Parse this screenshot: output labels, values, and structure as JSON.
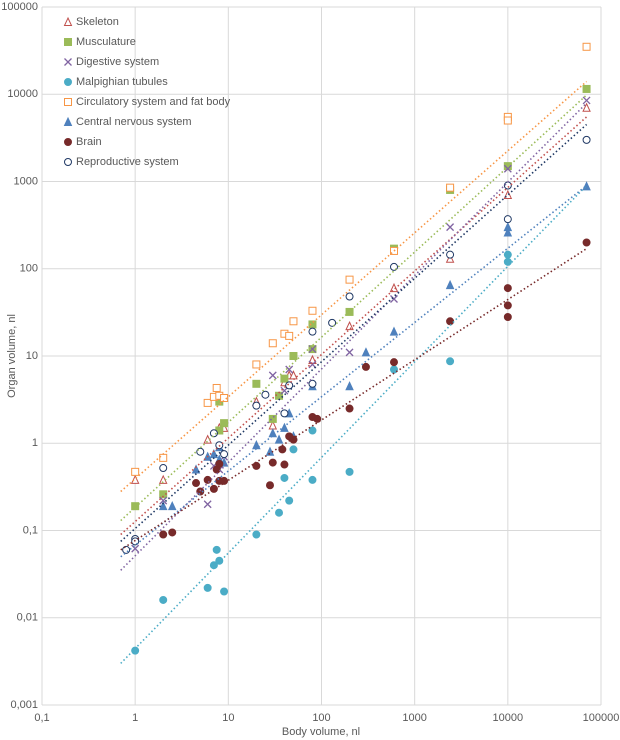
{
  "chart_data": {
    "type": "scatter",
    "log_x": true,
    "log_y": true,
    "grid": true,
    "legend": "upper left",
    "xlabel": "Body volume, nl",
    "ylabel": "Organ volume, nl",
    "xlim": [
      0.1,
      100000
    ],
    "ylim": [
      0.001,
      100000
    ],
    "xticks": [
      {
        "value": 0.1,
        "label": "0,1"
      },
      1,
      10,
      100,
      1000,
      10000,
      100000
    ],
    "yticks": [
      {
        "value": 0.001,
        "label": "0,001"
      },
      {
        "value": 0.01,
        "label": "0,01"
      },
      {
        "value": 0.1,
        "label": "0,1"
      },
      1,
      10,
      100,
      1000,
      10000,
      100000
    ],
    "series": [
      {
        "name": "Skeleton",
        "color": "#c0504d",
        "marker": "triangle-open",
        "x": [
          1,
          2,
          6,
          8,
          9,
          20,
          30,
          40,
          45,
          50,
          80,
          200,
          600,
          2400,
          10000,
          70000
        ],
        "values": [
          0.38,
          0.38,
          1.1,
          1.5,
          1.5,
          3,
          1.6,
          5,
          6,
          6,
          9,
          22,
          60,
          130,
          700,
          7000
        ],
        "trend": {
          "x": [
            0.7,
            70000
          ],
          "values": [
            0.09,
            5500
          ]
        }
      },
      {
        "name": "Musculature",
        "color": "#9bbb59",
        "marker": "square",
        "x": [
          1,
          2,
          8,
          8,
          9,
          20,
          30,
          35,
          40,
          50,
          80,
          80,
          200,
          600,
          2400,
          10000,
          70000
        ],
        "values": [
          0.19,
          0.26,
          1.4,
          3,
          1.7,
          4.8,
          1.9,
          3.5,
          5.5,
          10,
          23,
          12,
          32,
          170,
          800,
          1500,
          11500
        ],
        "trend": {
          "x": [
            0.7,
            70000
          ],
          "values": [
            0.13,
            9800
          ]
        }
      },
      {
        "name": "Digestive system",
        "color": "#8064a2",
        "marker": "cross",
        "x": [
          1,
          2,
          6,
          7,
          8,
          9,
          30,
          40,
          45,
          80,
          80,
          200,
          600,
          2400,
          10000,
          70000
        ],
        "values": [
          0.062,
          0.22,
          0.2,
          0.55,
          0.5,
          0.7,
          6,
          4,
          7,
          12,
          8,
          11,
          45,
          300,
          1400,
          8500
        ],
        "trend": {
          "x": [
            0.7,
            70000
          ],
          "values": [
            0.035,
            7900
          ]
        }
      },
      {
        "name": "Malpighian tubules",
        "color": "#4bacc6",
        "marker": "circle",
        "x": [
          1,
          2,
          6,
          7,
          7.5,
          8,
          9,
          20,
          35,
          40,
          45,
          50,
          80,
          80,
          200,
          600,
          2400,
          10000,
          10000
        ],
        "values": [
          0.0042,
          0.016,
          0.022,
          0.04,
          0.06,
          0.045,
          0.02,
          0.09,
          0.16,
          0.4,
          0.22,
          0.85,
          0.38,
          1.4,
          0.47,
          7,
          8.7,
          120,
          145
        ],
        "trend": {
          "x": [
            0.7,
            70000
          ],
          "values": [
            0.003,
            900
          ]
        }
      },
      {
        "name": "Circulatory system and fat body",
        "color": "#f79646",
        "marker": "square-open",
        "x": [
          1,
          2,
          6,
          7,
          7.5,
          8,
          9,
          20,
          30,
          40,
          45,
          50,
          80,
          200,
          600,
          2400,
          10000,
          10000,
          70000
        ],
        "values": [
          0.47,
          0.68,
          2.9,
          3.4,
          4.3,
          3.5,
          3.3,
          8,
          14,
          18,
          17,
          25,
          33,
          75,
          160,
          850,
          5500,
          5000,
          35000
        ],
        "trend": {
          "x": [
            0.7,
            70000
          ],
          "values": [
            0.28,
            14000
          ]
        }
      },
      {
        "name": "Central nervous system",
        "color": "#4f81bd",
        "marker": "triangle",
        "x": [
          2,
          2.5,
          4.5,
          6,
          7,
          8,
          8,
          9,
          20,
          28,
          30,
          35,
          40,
          45,
          50,
          80,
          200,
          300,
          600,
          2400,
          10000,
          10000,
          70000
        ],
        "values": [
          0.19,
          0.19,
          0.5,
          0.7,
          0.75,
          0.9,
          0.65,
          0.6,
          0.95,
          0.8,
          1.3,
          1.1,
          1.5,
          2.2,
          1.2,
          4.5,
          4.5,
          11,
          19,
          65,
          260,
          300,
          880
        ],
        "trend": {
          "x": [
            0.7,
            70000
          ],
          "values": [
            0.05,
            900
          ]
        }
      },
      {
        "name": "Brain",
        "color": "#772a2a",
        "marker": "circle",
        "x": [
          2,
          2.5,
          4.5,
          5,
          6,
          7,
          7.5,
          8,
          8,
          9,
          20,
          28,
          30,
          38,
          40,
          45,
          50,
          80,
          90,
          200,
          300,
          600,
          2400,
          10000,
          10000,
          10000,
          70000
        ],
        "values": [
          0.09,
          0.095,
          0.35,
          0.28,
          0.38,
          0.3,
          0.5,
          0.37,
          0.58,
          0.37,
          0.55,
          0.33,
          0.6,
          0.85,
          0.57,
          1.2,
          1.1,
          2,
          1.9,
          2.5,
          7.5,
          8.5,
          25,
          28,
          60,
          38,
          200
        ],
        "trend": {
          "x": [
            0.7,
            70000
          ],
          "values": [
            0.06,
            170
          ]
        }
      },
      {
        "name": "Reproductive system",
        "color": "#1f3864",
        "marker": "circle-open",
        "x": [
          0.8,
          1,
          1,
          2,
          5,
          7,
          8,
          9,
          20,
          25,
          40,
          45,
          80,
          80,
          130,
          200,
          600,
          2400,
          10000,
          10000,
          70000
        ],
        "values": [
          0.06,
          0.08,
          0.075,
          0.52,
          0.8,
          1.3,
          0.95,
          0.75,
          2.7,
          3.6,
          2.2,
          4.6,
          4.8,
          19,
          24,
          48,
          105,
          145,
          370,
          900,
          3000
        ],
        "trend": {
          "x": [
            0.7,
            70000
          ],
          "values": [
            0.075,
            4500
          ]
        }
      }
    ]
  }
}
